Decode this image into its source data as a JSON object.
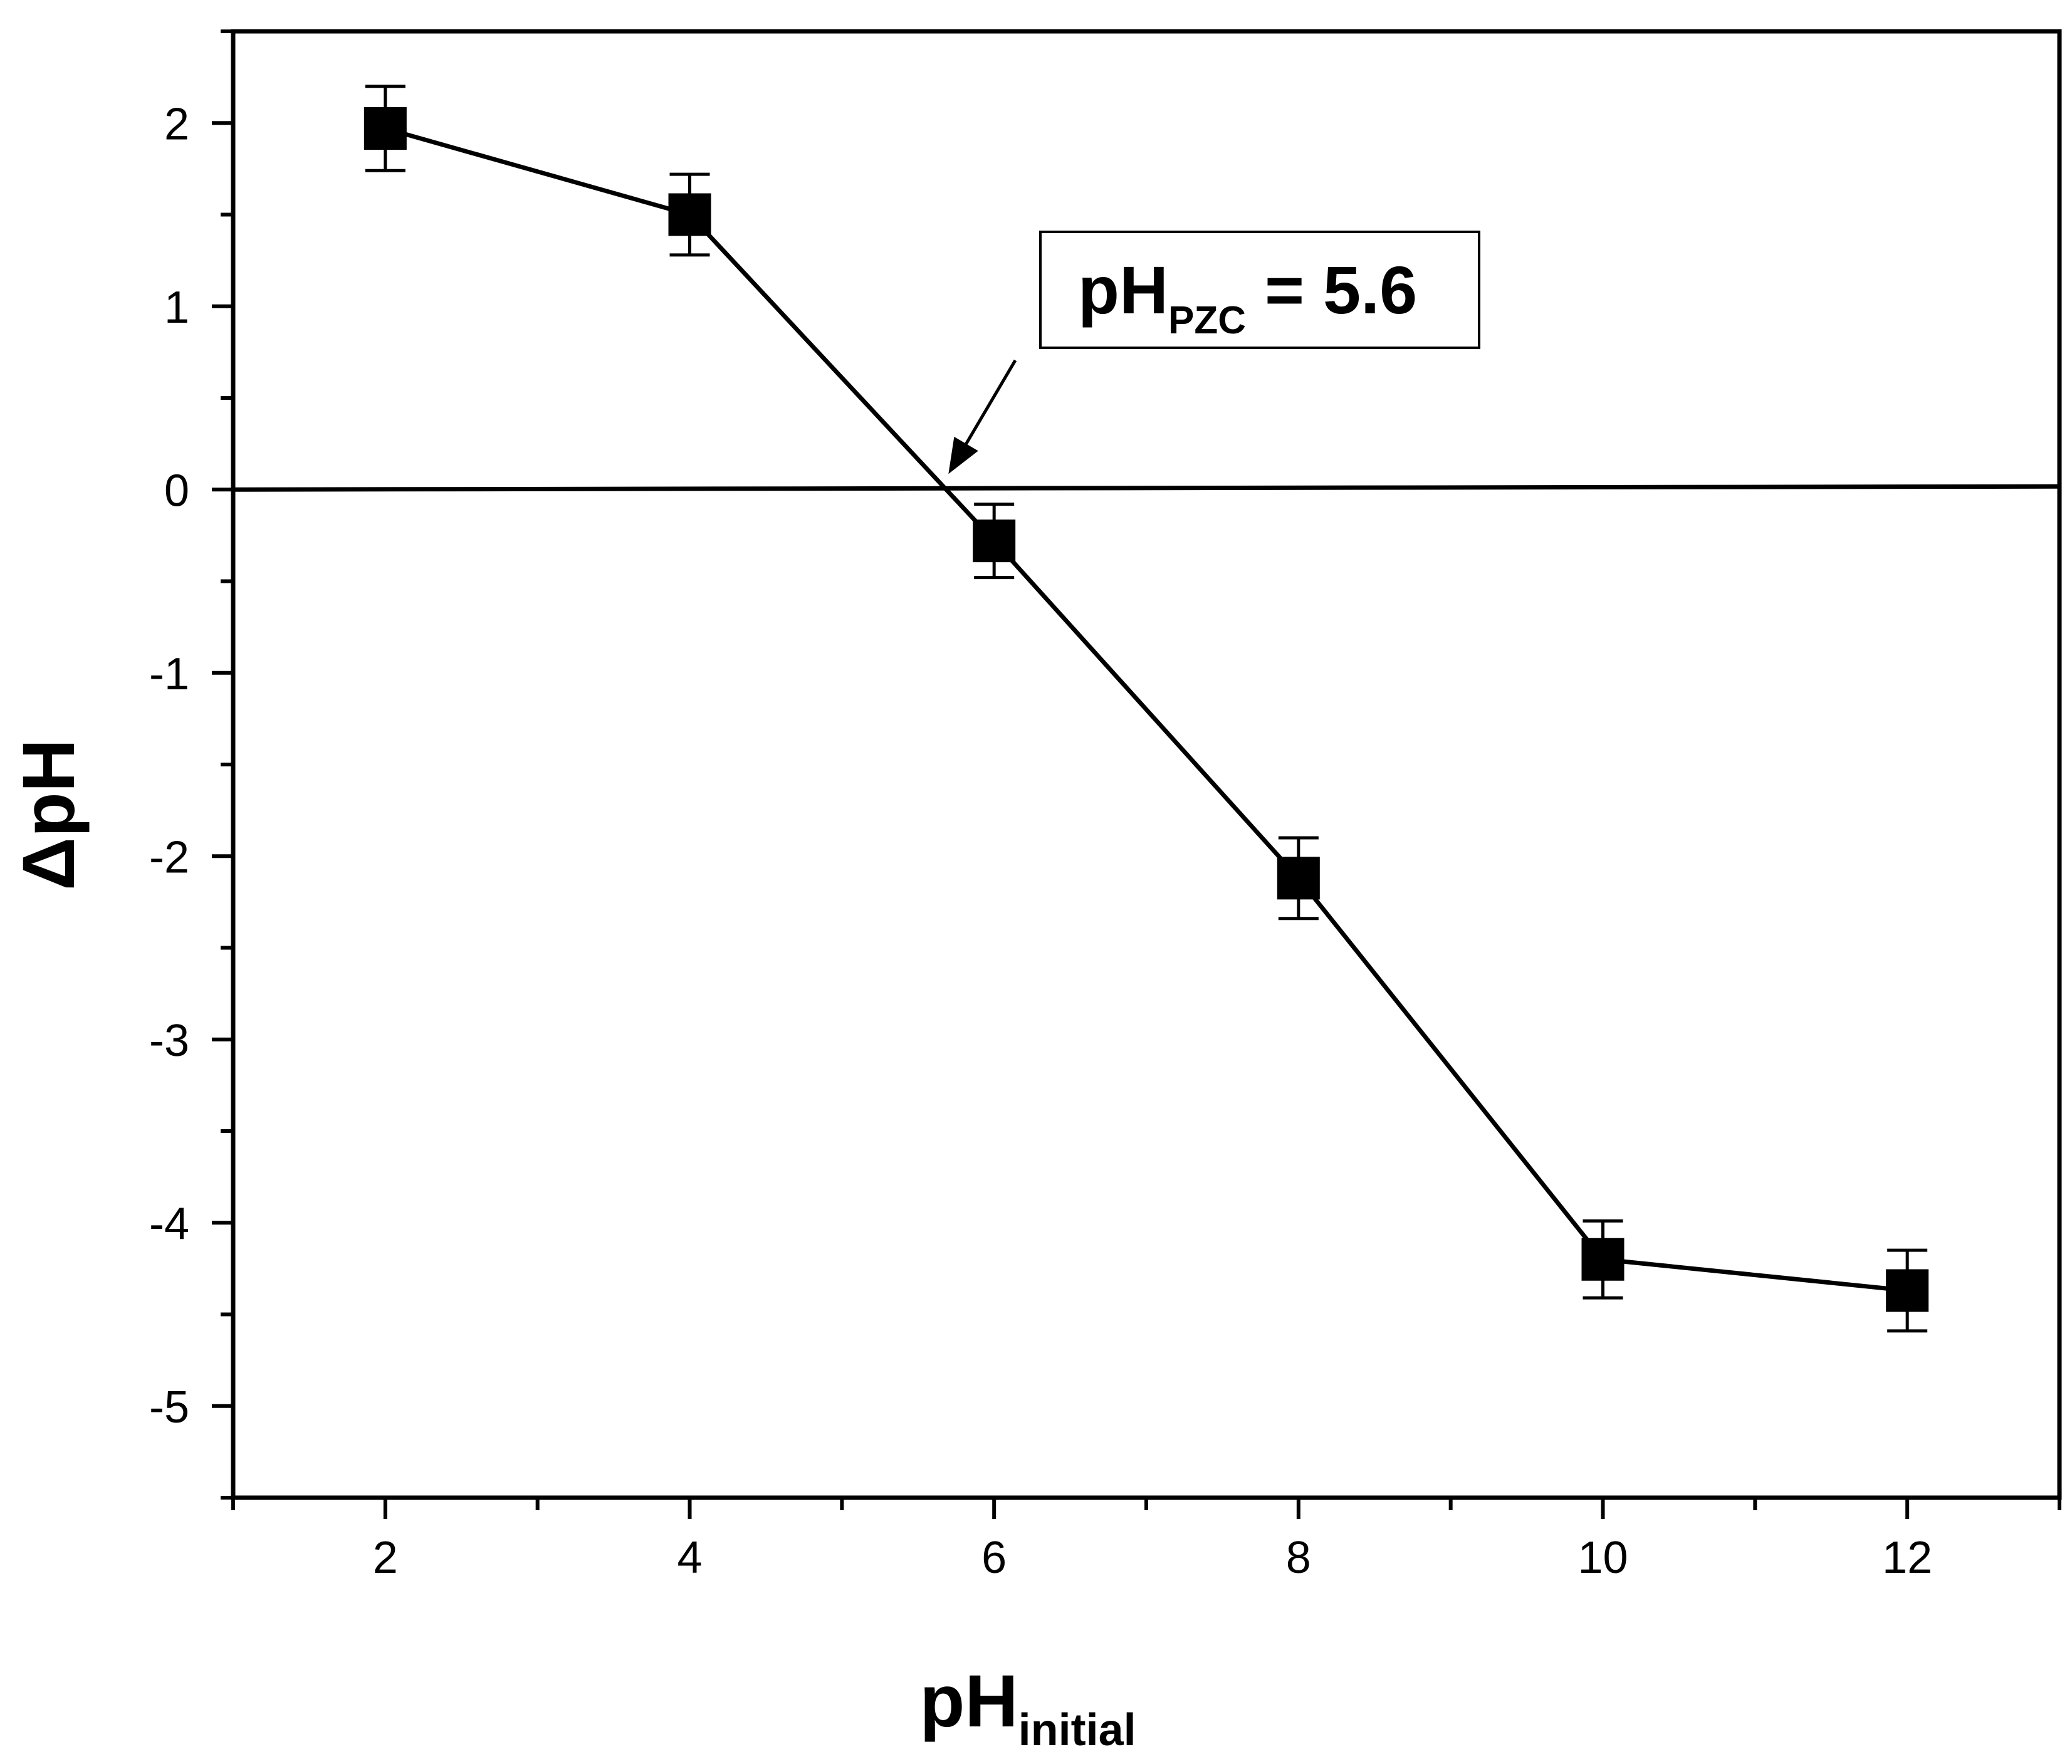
{
  "chart_data": {
    "type": "line",
    "title": "",
    "xlabel": {
      "main": "pH",
      "sub": "initial"
    },
    "ylabel": "ΔpH",
    "xlim": [
      1,
      13
    ],
    "ylim": [
      -5.5,
      2.5
    ],
    "x_ticks": [
      2,
      4,
      6,
      8,
      10,
      12
    ],
    "y_ticks": [
      2,
      1,
      0,
      -1,
      -2,
      -3,
      -4,
      -5
    ],
    "x_tick_labels": [
      "2",
      "4",
      "6",
      "8",
      "10",
      "12"
    ],
    "y_tick_labels": [
      "2",
      "1",
      "0",
      "-1",
      "-2",
      "-3",
      "-4",
      "-5"
    ],
    "grid": false,
    "reference_line": {
      "y": 0
    },
    "series": [
      {
        "name": "ΔpH",
        "marker": "square",
        "color": "#000000",
        "x": [
          2,
          4,
          6,
          8,
          10,
          12
        ],
        "y": [
          1.97,
          1.5,
          -0.28,
          -2.12,
          -4.2,
          -4.37
        ],
        "error": [
          0.23,
          0.22,
          0.2,
          0.22,
          0.21,
          0.22
        ]
      }
    ],
    "annotation": {
      "main": "pH",
      "sub": "PZC",
      "suffix": " = 5.6",
      "arrow_target": {
        "x": 5.7,
        "y": 0
      }
    }
  }
}
